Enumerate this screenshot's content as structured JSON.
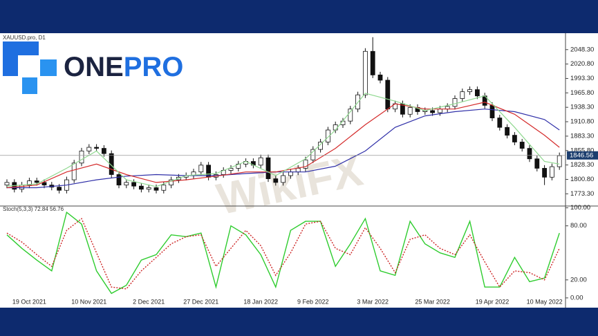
{
  "logo": {
    "part1": "ONE",
    "part2": "PRO"
  },
  "watermark": "WikiFX",
  "chart_data": [
    {
      "type": "candlestick",
      "title": "XAUUSD.pro, D1",
      "categories": [
        null,
        null,
        null,
        "19 Oct 2021",
        null,
        null,
        null,
        null,
        null,
        null,
        null,
        "10 Nov 2021",
        null,
        null,
        null,
        null,
        null,
        null,
        null,
        "2 Dec 2021",
        null,
        null,
        null,
        null,
        null,
        null,
        "27 Dec 2021",
        null,
        null,
        null,
        null,
        null,
        null,
        null,
        "18 Jan 2022",
        null,
        null,
        null,
        null,
        null,
        null,
        "9 Feb 2022",
        null,
        null,
        null,
        null,
        null,
        null,
        null,
        "3 Mar 2022",
        null,
        null,
        null,
        null,
        null,
        null,
        null,
        "25 Mar 2022",
        null,
        null,
        null,
        null,
        null,
        null,
        null,
        "19 Apr 2022",
        null,
        null,
        null,
        null,
        null,
        null,
        "10 May 2022",
        null,
        null
      ],
      "open": [
        1790,
        1795,
        1782,
        1790,
        1798,
        1795,
        1790,
        1786,
        1780,
        1800,
        1832,
        1855,
        1862,
        1860,
        1850,
        1810,
        1790,
        1795,
        1788,
        1782,
        1785,
        1780,
        1790,
        1800,
        1805,
        1808,
        1815,
        1828,
        1805,
        1810,
        1818,
        1822,
        1830,
        1835,
        1828,
        1842,
        1802,
        1795,
        1808,
        1815,
        1822,
        1838,
        1858,
        1872,
        1895,
        1905,
        1912,
        1935,
        1962,
        2045,
        2000,
        1990,
        1935,
        1945,
        1925,
        1938,
        1930,
        1932,
        1928,
        1935,
        1940,
        1955,
        1968,
        1972,
        1960,
        1942,
        1918,
        1900,
        1885,
        1872,
        1860,
        1840,
        1822,
        1805,
        1825
      ],
      "high": [
        1801,
        1801,
        1796,
        1804,
        1804,
        1801,
        1796,
        1792,
        1806,
        1838,
        1861,
        1868,
        1868,
        1866,
        1856,
        1816,
        1801,
        1801,
        1794,
        1791,
        1791,
        1796,
        1806,
        1811,
        1814,
        1821,
        1834,
        1834,
        1816,
        1824,
        1828,
        1836,
        1841,
        1841,
        1848,
        1848,
        1808,
        1814,
        1821,
        1828,
        1844,
        1864,
        1878,
        1901,
        1911,
        1918,
        1941,
        1968,
        2051,
        2072,
        2006,
        1996,
        1951,
        1951,
        1944,
        1944,
        1938,
        1938,
        1941,
        1946,
        1961,
        1974,
        1978,
        1978,
        1966,
        1948,
        1924,
        1906,
        1891,
        1878,
        1866,
        1846,
        1828,
        1831,
        1852
      ],
      "low": [
        1784,
        1776,
        1776,
        1784,
        1789,
        1784,
        1780,
        1774,
        1774,
        1794,
        1826,
        1849,
        1854,
        1844,
        1804,
        1784,
        1784,
        1782,
        1776,
        1776,
        1774,
        1774,
        1784,
        1794,
        1799,
        1802,
        1809,
        1799,
        1799,
        1804,
        1812,
        1816,
        1824,
        1822,
        1822,
        1796,
        1789,
        1789,
        1802,
        1809,
        1816,
        1832,
        1852,
        1866,
        1889,
        1899,
        1906,
        1929,
        1956,
        1994,
        1984,
        1929,
        1929,
        1919,
        1919,
        1924,
        1924,
        1922,
        1922,
        1929,
        1934,
        1949,
        1962,
        1954,
        1936,
        1912,
        1894,
        1879,
        1866,
        1854,
        1834,
        1816,
        1790,
        1799,
        1819
      ],
      "close": [
        1795,
        1782,
        1790,
        1798,
        1795,
        1790,
        1786,
        1780,
        1800,
        1832,
        1855,
        1862,
        1860,
        1850,
        1810,
        1790,
        1795,
        1788,
        1782,
        1785,
        1780,
        1790,
        1800,
        1805,
        1808,
        1815,
        1828,
        1805,
        1810,
        1818,
        1822,
        1830,
        1835,
        1828,
        1842,
        1802,
        1795,
        1808,
        1815,
        1822,
        1838,
        1858,
        1872,
        1895,
        1905,
        1912,
        1935,
        1962,
        2045,
        2000,
        1990,
        1935,
        1945,
        1925,
        1938,
        1930,
        1932,
        1928,
        1935,
        1940,
        1955,
        1968,
        1972,
        1960,
        1942,
        1918,
        1900,
        1885,
        1872,
        1860,
        1840,
        1822,
        1805,
        1825,
        1846
      ],
      "series": [
        {
          "color": "#2f2fa8",
          "x": [
            0,
            4,
            8,
            12,
            16,
            20,
            24,
            28,
            32,
            36,
            40,
            44,
            48,
            52,
            56,
            60,
            64,
            68,
            72,
            74
          ],
          "values": [
            1785,
            1785,
            1790,
            1800,
            1807,
            1810,
            1808,
            1808,
            1812,
            1815,
            1815,
            1826,
            1855,
            1900,
            1922,
            1930,
            1935,
            1930,
            1915,
            1895
          ]
        },
        {
          "color": "#d42a2a",
          "x": [
            0,
            4,
            8,
            12,
            16,
            20,
            24,
            28,
            32,
            36,
            40,
            44,
            48,
            52,
            56,
            60,
            64,
            68,
            72,
            74
          ],
          "values": [
            1785,
            1790,
            1815,
            1830,
            1810,
            1795,
            1800,
            1807,
            1815,
            1815,
            1825,
            1860,
            1905,
            1945,
            1935,
            1935,
            1948,
            1925,
            1885,
            1862
          ]
        },
        {
          "color": "#8fd88f",
          "x": [
            0,
            4,
            8,
            12,
            16,
            20,
            24,
            28,
            32,
            36,
            40,
            44,
            48,
            52,
            56,
            60,
            64,
            68,
            72,
            74
          ],
          "values": [
            1788,
            1792,
            1822,
            1855,
            1800,
            1787,
            1808,
            1812,
            1835,
            1808,
            1840,
            1895,
            1965,
            1950,
            1932,
            1945,
            1960,
            1900,
            1835,
            1830
          ]
        }
      ],
      "last_price": 1846.56,
      "ylim": [
        1750,
        2077
      ],
      "yticks": [
        {
          "value": 1773.3,
          "label": "1773.30"
        },
        {
          "value": 1800.8,
          "label": "1800.80"
        },
        {
          "value": 1828.3,
          "label": "1828.30"
        },
        {
          "value": 1855.8,
          "label": "1855.80"
        },
        {
          "value": 1883.3,
          "label": "1883.30"
        },
        {
          "value": 1910.8,
          "label": "1910.80"
        },
        {
          "value": 1938.3,
          "label": "1938.30"
        },
        {
          "value": 1965.8,
          "label": "1965.80"
        },
        {
          "value": 1993.3,
          "label": "1993.30"
        },
        {
          "value": 2020.8,
          "label": "2020.80"
        },
        {
          "value": 2048.3,
          "label": "2048.30"
        }
      ],
      "up_color": "#ffffff",
      "down_color": "#111111"
    },
    {
      "type": "line",
      "title": "Stoch(5,3,3) 72.84 56.76",
      "x": [
        0,
        2,
        4,
        6,
        8,
        10,
        12,
        14,
        16,
        18,
        20,
        22,
        24,
        26,
        28,
        30,
        32,
        34,
        36,
        38,
        40,
        42,
        44,
        46,
        48,
        50,
        52,
        54,
        56,
        58,
        60,
        62,
        64,
        66,
        68,
        70,
        72,
        74
      ],
      "series": [
        {
          "color": "#2ecc2e",
          "dashed": false,
          "values": [
            70,
            55,
            42,
            30,
            95,
            82,
            30,
            5,
            14,
            42,
            48,
            70,
            68,
            72,
            12,
            80,
            70,
            48,
            12,
            75,
            85,
            85,
            35,
            60,
            88,
            30,
            25,
            85,
            60,
            50,
            45,
            85,
            12,
            12,
            45,
            18,
            22,
            72
          ]
        },
        {
          "color": "#cc2222",
          "dashed": true,
          "values": [
            72,
            62,
            48,
            35,
            75,
            88,
            50,
            12,
            10,
            30,
            45,
            60,
            68,
            70,
            35,
            55,
            75,
            58,
            25,
            50,
            82,
            85,
            55,
            48,
            78,
            55,
            28,
            65,
            70,
            55,
            48,
            70,
            40,
            12,
            30,
            28,
            20,
            55
          ]
        }
      ],
      "ylim": [
        -7,
        102
      ],
      "yticks": [
        {
          "value": 0,
          "label": "0.00"
        },
        {
          "value": 20,
          "label": "20.00"
        },
        {
          "value": 80,
          "label": "80.00"
        },
        {
          "value": 100,
          "label": "100.00"
        }
      ]
    }
  ]
}
